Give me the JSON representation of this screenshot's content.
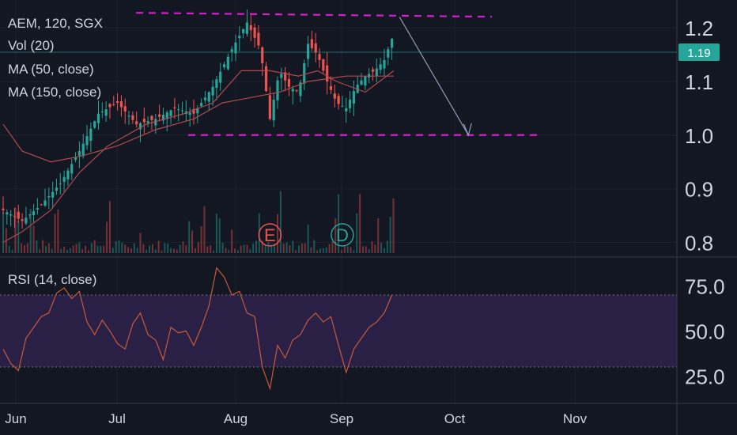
{
  "legend": {
    "symbol_line": "AEM, 120, SGX",
    "vol": "Vol (20)",
    "ma50": "MA (50, close)",
    "ma150": "MA (150, close)",
    "rsi": "RSI (14, close)"
  },
  "colors": {
    "background": "#131722",
    "up": "#26a69a",
    "down": "#ef5350",
    "ma": "#b04a4f",
    "rsi_line": "#c65a3e",
    "rsi_band": "#2a1f45",
    "dashed": "#d81ccf",
    "arrow": "#8f9db6",
    "price_tag": "#26a69a"
  },
  "chart_data": [
    {
      "type": "candlestick",
      "title": "AEM, 120, SGX",
      "y_ticks": [
        "0.8",
        "0.9",
        "1.0",
        "1.1",
        "1.2"
      ],
      "y_range": [
        0.78,
        1.24
      ],
      "x_ticks": [
        "Jun",
        "Jul",
        "Aug",
        "Sep",
        "Oct",
        "Nov"
      ],
      "last_price": "1.19",
      "close_path": [
        [
          0,
          0.86
        ],
        [
          10,
          0.84
        ],
        [
          20,
          0.87
        ],
        [
          30,
          0.91
        ],
        [
          40,
          0.97
        ],
        [
          50,
          1.04
        ],
        [
          60,
          1.06
        ],
        [
          70,
          1.02
        ],
        [
          80,
          1.03
        ],
        [
          90,
          1.05
        ],
        [
          100,
          1.04
        ],
        [
          110,
          1.09
        ],
        [
          120,
          1.16
        ],
        [
          128,
          1.21
        ],
        [
          135,
          1.16
        ],
        [
          140,
          1.03
        ],
        [
          145,
          1.12
        ],
        [
          150,
          1.09
        ],
        [
          155,
          1.08
        ],
        [
          160,
          1.17
        ],
        [
          165,
          1.15
        ],
        [
          170,
          1.1
        ],
        [
          175,
          1.06
        ],
        [
          180,
          1.05
        ],
        [
          185,
          1.09
        ],
        [
          190,
          1.11
        ],
        [
          195,
          1.12
        ],
        [
          200,
          1.14
        ],
        [
          205,
          1.19
        ]
      ],
      "ma50_path": [
        [
          0,
          0.8
        ],
        [
          10,
          0.82
        ],
        [
          25,
          0.86
        ],
        [
          40,
          0.93
        ],
        [
          55,
          0.98
        ],
        [
          75,
          1.02
        ],
        [
          95,
          1.04
        ],
        [
          110,
          1.06
        ],
        [
          125,
          1.12
        ],
        [
          140,
          1.12
        ],
        [
          155,
          1.11
        ],
        [
          165,
          1.12
        ],
        [
          175,
          1.1
        ],
        [
          190,
          1.08
        ],
        [
          205,
          1.12
        ]
      ],
      "ma150_path": [
        [
          0,
          1.02
        ],
        [
          10,
          0.97
        ],
        [
          25,
          0.95
        ],
        [
          40,
          0.96
        ],
        [
          60,
          0.98
        ],
        [
          80,
          1.01
        ],
        [
          100,
          1.03
        ],
        [
          115,
          1.06
        ],
        [
          130,
          1.07
        ],
        [
          145,
          1.08
        ],
        [
          160,
          1.1
        ],
        [
          180,
          1.11
        ],
        [
          205,
          1.11
        ]
      ],
      "volume_spike_days": [
        1,
        7,
        15,
        28,
        55,
        72,
        98,
        105,
        113,
        120,
        134,
        145,
        160,
        175,
        186,
        197,
        204
      ],
      "upper_dashed_level": 1.225,
      "lower_dashed_level": 1.0,
      "projection": {
        "from": [
          208,
          1.22
        ],
        "to": [
          235,
          1.0
        ]
      },
      "event_markers": [
        {
          "label": "E",
          "day": 140
        },
        {
          "label": "D",
          "day": 178
        }
      ]
    },
    {
      "type": "line",
      "title": "RSI (14, close)",
      "y_ticks": [
        "75.0",
        "50.0",
        "25.0"
      ],
      "y_range": [
        12,
        88
      ],
      "band": [
        30,
        70
      ],
      "series": [
        {
          "name": "RSI (14, close)",
          "x": [
            0,
            4,
            8,
            12,
            16,
            20,
            24,
            28,
            32,
            36,
            40,
            44,
            48,
            52,
            56,
            60,
            64,
            68,
            72,
            76,
            80,
            84,
            88,
            92,
            96,
            100,
            104,
            108,
            112,
            116,
            120,
            124,
            128,
            132,
            136,
            140,
            144,
            148,
            152,
            156,
            160,
            164,
            168,
            172,
            176,
            180,
            184,
            188,
            192,
            196,
            200,
            204
          ],
          "values": [
            40,
            32,
            28,
            46,
            52,
            58,
            60,
            71,
            74,
            68,
            72,
            55,
            48,
            56,
            50,
            43,
            40,
            54,
            60,
            48,
            45,
            34,
            52,
            49,
            50,
            42,
            52,
            64,
            85,
            80,
            70,
            72,
            60,
            58,
            30,
            18,
            42,
            35,
            45,
            48,
            56,
            60,
            55,
            58,
            42,
            27,
            40,
            46,
            52,
            55,
            60,
            70
          ]
        }
      ]
    }
  ]
}
